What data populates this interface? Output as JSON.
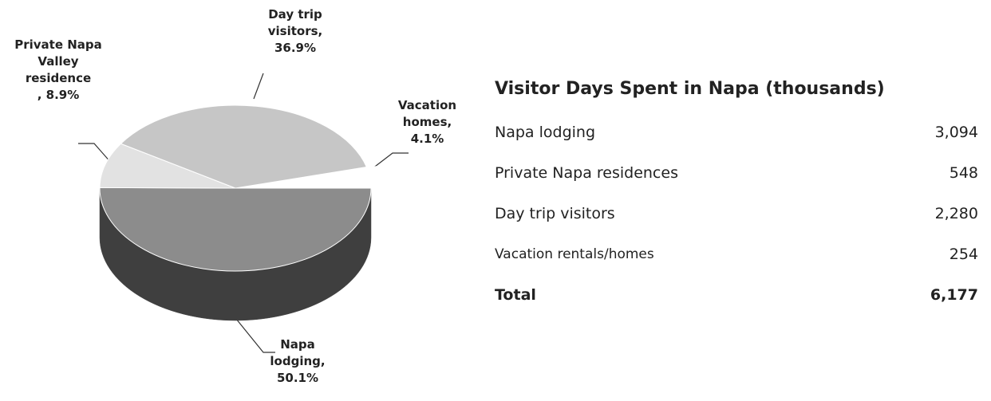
{
  "chart_data": {
    "type": "pie",
    "categories": [
      "Napa lodging,",
      "Private Napa Valley residence",
      "Day trip visitors,",
      "Vacation homes,"
    ],
    "values": [
      50.1,
      8.9,
      36.9,
      4.1
    ],
    "value_labels": [
      "50.1%",
      ", 8.9%",
      "36.9%",
      "4.1%"
    ],
    "colors": [
      "#8c8c8c",
      "#e2e2e2",
      "#c6c6c6",
      "#ffffff"
    ]
  },
  "table": {
    "title": "Visitor Days Spent in Napa (thousands)",
    "rows": [
      [
        "Napa lodging",
        "3,094"
      ],
      [
        "Private Napa residences",
        "548"
      ],
      [
        "Day trip visitors",
        "2,280"
      ],
      [
        "Vacation rentals/homes",
        "254"
      ]
    ],
    "total": [
      "Total",
      "6,177"
    ]
  }
}
